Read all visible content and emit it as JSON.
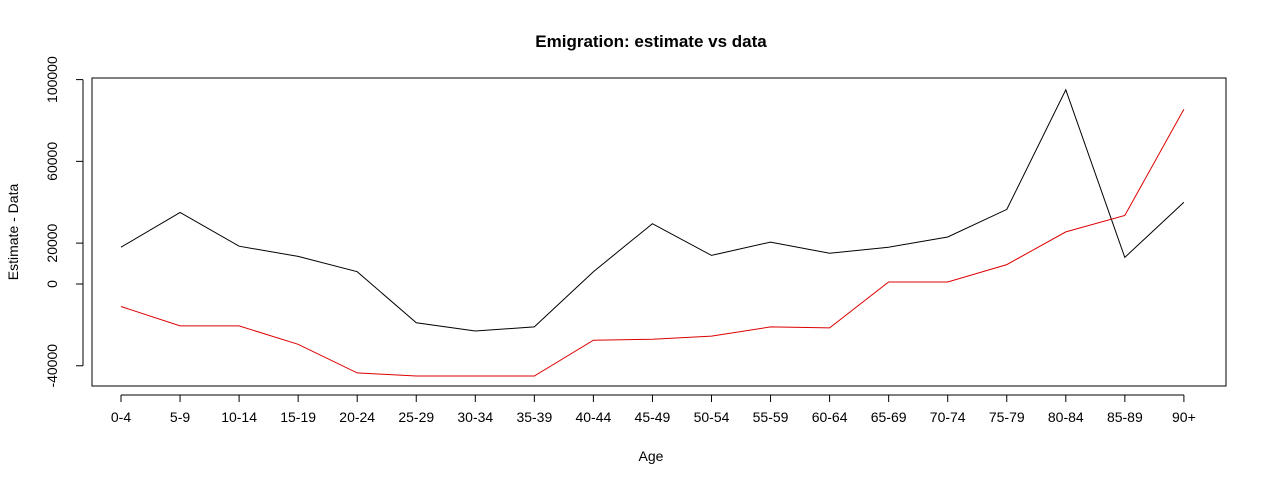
{
  "chart_data": {
    "type": "line",
    "title": "Emigration: estimate vs data",
    "xlabel": "Age",
    "ylabel": "Estimate - Data",
    "categories": [
      "0-4",
      "5-9",
      "10-14",
      "15-19",
      "20-24",
      "25-29",
      "30-34",
      "35-39",
      "40-44",
      "45-49",
      "50-54",
      "55-59",
      "60-64",
      "65-69",
      "70-74",
      "75-79",
      "80-84",
      "85-89",
      "90+"
    ],
    "yticks": [
      -40000,
      0,
      20000,
      60000,
      100000
    ],
    "ylim": [
      -50000,
      100000
    ],
    "grid": false,
    "series": [
      {
        "color": "#000000",
        "values": [
          18000,
          35000,
          18500,
          13500,
          6000,
          -19000,
          -23000,
          -21000,
          6000,
          29500,
          14000,
          20500,
          15000,
          18000,
          23000,
          36500,
          95000,
          13000,
          40000
        ]
      },
      {
        "color": "#dd0000",
        "values": [
          -11000,
          -20500,
          -20500,
          -29500,
          -43500,
          -45000,
          -45000,
          -45000,
          -27500,
          -27000,
          -25500,
          -21000,
          -21500,
          1000,
          1000,
          9500,
          25500,
          33500,
          85500
        ]
      }
    ]
  }
}
